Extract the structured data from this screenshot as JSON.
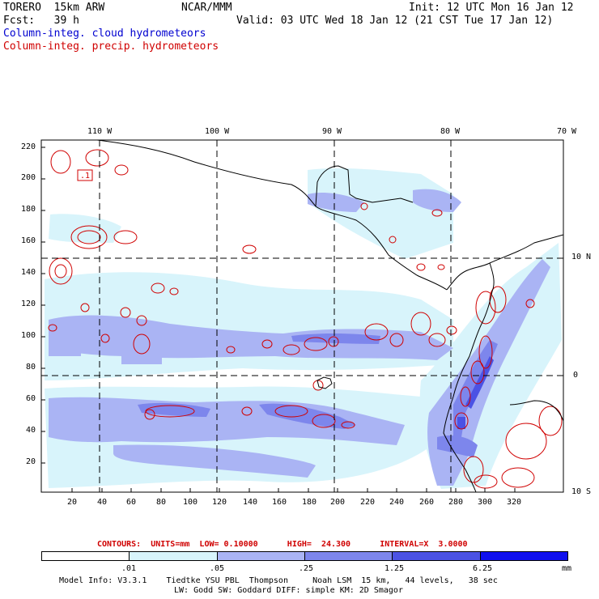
{
  "header": {
    "model": "TORERO  15km ARW",
    "org": "NCAR/MMM",
    "init": "Init: 12 UTC Mon 16 Jan 12",
    "fcst": "Fcst:   39 h",
    "valid": "Valid: 03 UTC Wed 18 Jan 12 (21 CST Tue 17 Jan 12)",
    "field_cloud": "Column-integ. cloud hydrometeors",
    "field_precip": "Column-integ. precip. hydrometeors"
  },
  "map": {
    "lon_labels": [
      "110 W",
      "100 W",
      "90 W",
      "80 W",
      "70 W"
    ],
    "lat_labels": [
      "10 N",
      "0",
      "10 S"
    ],
    "x_ticks": [
      "20",
      "40",
      "60",
      "80",
      "100",
      "120",
      "140",
      "160",
      "180",
      "200",
      "220",
      "240",
      "260",
      "280",
      "300",
      "320"
    ],
    "y_ticks": [
      "220",
      "200",
      "180",
      "160",
      "140",
      "120",
      "100",
      "80",
      "60",
      "40",
      "20"
    ],
    "box_label": ".1"
  },
  "contour_legend": "CONTOURS:  UNITS=mm  LOW= 0.10000      HIGH=  24.300      INTERVAL=X  3.0000",
  "colorbar": {
    "colors": [
      "#ffffff",
      "#d8f4fb",
      "#aab4f4",
      "#7d86ec",
      "#4b52e4",
      "#1010ee"
    ],
    "labels": [
      ".01",
      ".05",
      ".25",
      "1.25",
      "6.25",
      "mm"
    ]
  },
  "footer": {
    "line1": "Model Info: V3.3.1    Tiedtke YSU PBL  Thompson     Noah LSM  15 km,   44 levels,   38 sec",
    "line2": "LW: Godd SW: Goddard DIFF: simple KM: 2D Smagor"
  }
}
